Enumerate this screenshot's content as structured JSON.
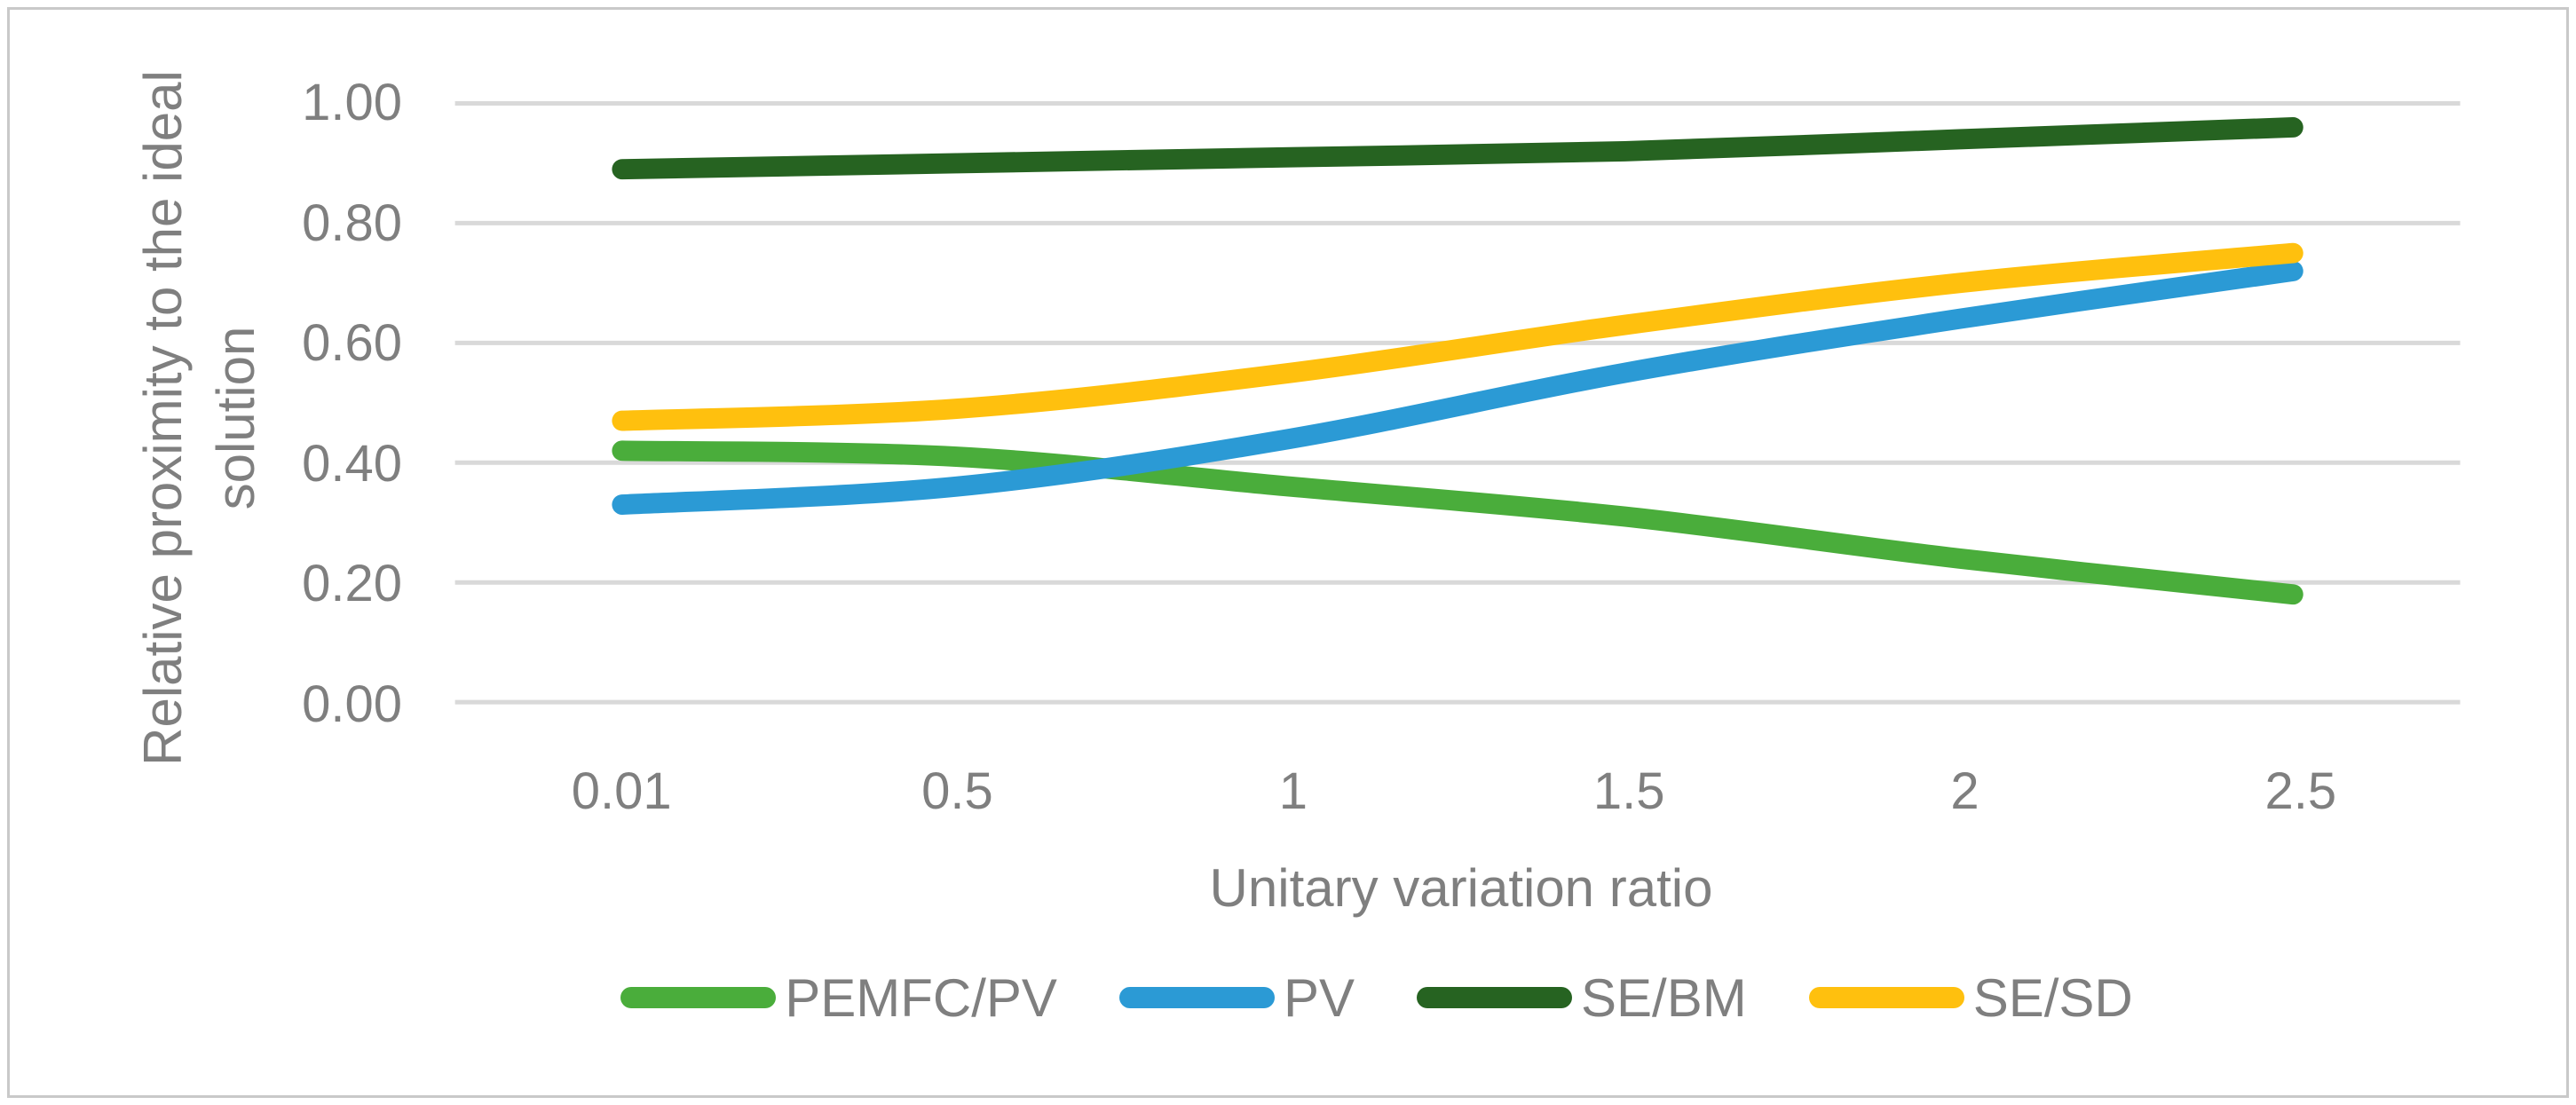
{
  "frame": {
    "border_color": "#c9c9c9",
    "background_color": "#ffffff"
  },
  "chart_data": {
    "type": "line",
    "title": "",
    "xlabel": "Unitary variation ratio",
    "ylabel": "Relative proximity to the ideal solution",
    "ylabel_wrap": [
      "Relative proximity to the ideal",
      "solution"
    ],
    "categories": [
      "0.01",
      "0.5",
      "1",
      "1.5",
      "2",
      "2.5"
    ],
    "y_ticks": [
      "1.00",
      "0.80",
      "0.60",
      "0.40",
      "0.20",
      "0.00"
    ],
    "ylim": [
      0,
      1
    ],
    "grid": "horizontal",
    "gridline_color": "#d9d9d9",
    "axis_text_color": "#7f7f7f",
    "line_style": "smoothed",
    "legend_position": "bottom",
    "series": [
      {
        "name": "PEMFC/PV",
        "color": "#4aad3b",
        "values": [
          0.42,
          0.41,
          0.36,
          0.31,
          0.24,
          0.18
        ]
      },
      {
        "name": "PV",
        "color": "#2b9ad5",
        "values": [
          0.33,
          0.36,
          0.44,
          0.55,
          0.64,
          0.72
        ]
      },
      {
        "name": "SE/BM",
        "color": "#266321",
        "values": [
          0.89,
          0.9,
          0.91,
          0.92,
          0.94,
          0.96
        ]
      },
      {
        "name": "SE/SD",
        "color": "#ffc00e",
        "values": [
          0.47,
          0.49,
          0.55,
          0.63,
          0.7,
          0.75
        ]
      }
    ]
  }
}
